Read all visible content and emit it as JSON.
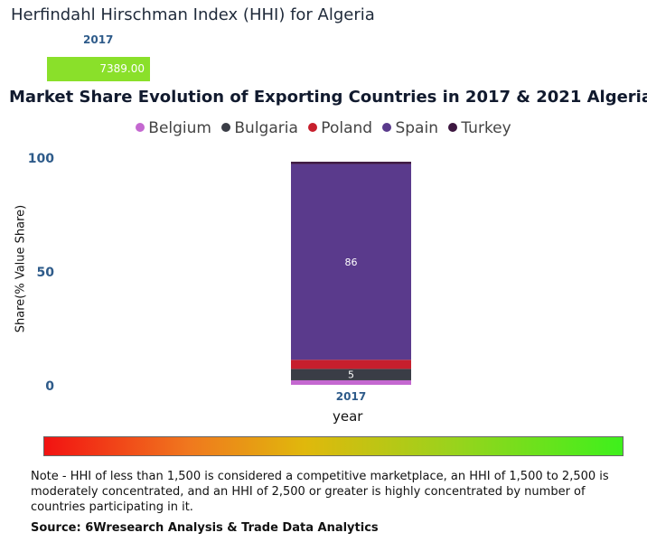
{
  "hhi": {
    "title": "Herfindahl Hirschman Index (HHI) for Algeria",
    "year": "2017",
    "value": "7389.00",
    "bar_color": "#8ae02a"
  },
  "share_chart": {
    "title": "Market Share Evolution of Exporting Countries in 2017 & 2021 Algeria"
  },
  "legend": [
    {
      "name": "Belgium",
      "color": "#c468d0"
    },
    {
      "name": "Bulgaria",
      "color": "#3a3d46"
    },
    {
      "name": "Poland",
      "color": "#c71f2d"
    },
    {
      "name": "Spain",
      "color": "#5a3a8c"
    },
    {
      "name": "Turkey",
      "color": "#3d1740"
    }
  ],
  "chart_data": {
    "type": "bar",
    "stacked": true,
    "categories": [
      "2017"
    ],
    "series": [
      {
        "name": "Belgium",
        "values": [
          2
        ],
        "color": "#c468d0",
        "label": ""
      },
      {
        "name": "Bulgaria",
        "values": [
          5
        ],
        "color": "#3a3d46",
        "label": "5"
      },
      {
        "name": "Poland",
        "values": [
          4
        ],
        "color": "#c71f2d",
        "label": ""
      },
      {
        "name": "Spain",
        "values": [
          86
        ],
        "color": "#5a3a8c",
        "label": "86"
      },
      {
        "name": "Turkey",
        "values": [
          1
        ],
        "color": "#3d1740",
        "label": ""
      }
    ],
    "ylim": [
      0,
      100
    ],
    "yticks": [
      0,
      50,
      100
    ],
    "xlabel": "year",
    "ylabel": "Share(% Value Share)",
    "grid": false,
    "legend_position": "top"
  },
  "note": "Note - HHI of less than 1,500 is considered a competitive marketplace, an HHI of 1,500 to 2,500 is moderately concentrated, and an HHI of 2,500 or greater is highly concentrated by number of countries participating in it.",
  "source": "Source: 6Wresearch Analysis & Trade Data Analytics"
}
